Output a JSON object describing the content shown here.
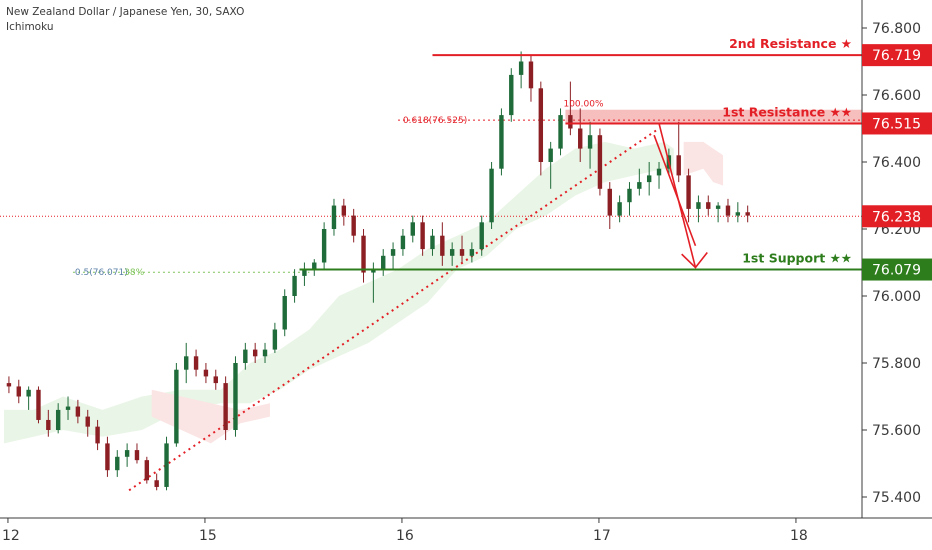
{
  "header": {
    "title": "New Zealand Dollar / Japanese Yen, 30, SAXO",
    "indicator": "Ichimoku"
  },
  "chart_data": {
    "type": "candlestick",
    "ylim": [
      75.33,
      76.86
    ],
    "y_ticks": [
      "76.800",
      "76.600",
      "76.400",
      "76.200",
      "76.000",
      "75.800",
      "75.600",
      "75.400"
    ],
    "x_ticks": [
      {
        "label": "12",
        "t": 0.4
      },
      {
        "label": "15",
        "t": 20.4
      },
      {
        "label": "16",
        "t": 40.4
      },
      {
        "label": "17",
        "t": 60.4
      },
      {
        "label": "18",
        "t": 80.4
      }
    ],
    "grid": false,
    "current_price": 76.238,
    "levels": [
      {
        "name": "2nd Resistance ★",
        "price": 76.719,
        "price_label": "76.719",
        "color": "#e31f26"
      },
      {
        "name": "1st Resistance ★★",
        "price": 76.515,
        "price_label": "76.515",
        "color": "#e31f26"
      },
      {
        "name": "1st Support ★★",
        "price": 76.079,
        "price_label": "76.079",
        "color": "#2e7d1c"
      }
    ],
    "price_tag_current": "76.238",
    "fib_labels": {
      "fib_618": "0.618(76.525)",
      "fib_100": "100.00%",
      "fib_05": "0.5(76.071)",
      "fib_05_pct": "38%"
    },
    "candles": [
      [
        75.74,
        75.76,
        75.71,
        75.73
      ],
      [
        75.73,
        75.75,
        75.68,
        75.7
      ],
      [
        75.7,
        75.73,
        75.66,
        75.72
      ],
      [
        75.72,
        75.73,
        75.62,
        75.63
      ],
      [
        75.63,
        75.66,
        75.58,
        75.6
      ],
      [
        75.6,
        75.68,
        75.59,
        75.66
      ],
      [
        75.66,
        75.7,
        75.63,
        75.67
      ],
      [
        75.67,
        75.69,
        75.62,
        75.64
      ],
      [
        75.64,
        75.66,
        75.58,
        75.61
      ],
      [
        75.61,
        75.63,
        75.54,
        75.56
      ],
      [
        75.56,
        75.58,
        75.46,
        75.48
      ],
      [
        75.48,
        75.54,
        75.46,
        75.52
      ],
      [
        75.52,
        75.56,
        75.49,
        75.54
      ],
      [
        75.54,
        75.56,
        75.5,
        75.51
      ],
      [
        75.51,
        75.52,
        75.44,
        75.45
      ],
      [
        75.45,
        75.47,
        75.42,
        75.43
      ],
      [
        75.43,
        75.58,
        75.42,
        75.56
      ],
      [
        75.56,
        75.8,
        75.55,
        75.78
      ],
      [
        75.78,
        75.86,
        75.74,
        75.82
      ],
      [
        75.82,
        75.84,
        75.76,
        75.78
      ],
      [
        75.78,
        75.8,
        75.74,
        75.76
      ],
      [
        75.76,
        75.78,
        75.72,
        75.74
      ],
      [
        75.74,
        75.76,
        75.57,
        75.6
      ],
      [
        75.6,
        75.82,
        75.58,
        75.8
      ],
      [
        75.8,
        75.86,
        75.78,
        75.84
      ],
      [
        75.84,
        75.86,
        75.8,
        75.82
      ],
      [
        75.82,
        75.86,
        75.8,
        75.84
      ],
      [
        75.84,
        75.92,
        75.83,
        75.9
      ],
      [
        75.9,
        76.02,
        75.88,
        76.0
      ],
      [
        76.0,
        76.08,
        75.98,
        76.06
      ],
      [
        76.06,
        76.1,
        76.03,
        76.08
      ],
      [
        76.08,
        76.11,
        76.06,
        76.1
      ],
      [
        76.1,
        76.22,
        76.08,
        76.2
      ],
      [
        76.2,
        76.29,
        76.18,
        76.27
      ],
      [
        76.27,
        76.29,
        76.21,
        76.24
      ],
      [
        76.24,
        76.26,
        76.16,
        76.18
      ],
      [
        76.18,
        76.2,
        76.04,
        76.07
      ],
      [
        76.07,
        76.1,
        75.98,
        76.08
      ],
      [
        76.08,
        76.14,
        76.06,
        76.12
      ],
      [
        76.12,
        76.16,
        76.08,
        76.14
      ],
      [
        76.14,
        76.2,
        76.12,
        76.18
      ],
      [
        76.18,
        76.24,
        76.16,
        76.22
      ],
      [
        76.22,
        76.24,
        76.12,
        76.14
      ],
      [
        76.14,
        76.2,
        76.12,
        76.18
      ],
      [
        76.18,
        76.22,
        76.09,
        76.12
      ],
      [
        76.12,
        76.16,
        76.09,
        76.14
      ],
      [
        76.14,
        76.18,
        76.1,
        76.12
      ],
      [
        76.12,
        76.16,
        76.1,
        76.14
      ],
      [
        76.14,
        76.24,
        76.12,
        76.22
      ],
      [
        76.22,
        76.4,
        76.2,
        76.38
      ],
      [
        76.38,
        76.56,
        76.36,
        76.54
      ],
      [
        76.54,
        76.68,
        76.52,
        76.66
      ],
      [
        76.66,
        76.73,
        76.62,
        76.7
      ],
      [
        76.7,
        76.72,
        76.58,
        76.62
      ],
      [
        76.62,
        76.64,
        76.36,
        76.4
      ],
      [
        76.4,
        76.46,
        76.32,
        76.44
      ],
      [
        76.44,
        76.56,
        76.42,
        76.54
      ],
      [
        76.54,
        76.64,
        76.48,
        76.5
      ],
      [
        76.5,
        76.56,
        76.4,
        76.44
      ],
      [
        76.44,
        76.52,
        76.38,
        76.48
      ],
      [
        76.48,
        76.5,
        76.3,
        76.32
      ],
      [
        76.32,
        76.34,
        76.2,
        76.24
      ],
      [
        76.24,
        76.3,
        76.22,
        76.28
      ],
      [
        76.28,
        76.34,
        76.24,
        76.32
      ],
      [
        76.32,
        76.38,
        76.3,
        76.34
      ],
      [
        76.34,
        76.4,
        76.3,
        76.36
      ],
      [
        76.36,
        76.4,
        76.32,
        76.38
      ],
      [
        76.38,
        76.44,
        76.36,
        76.42
      ],
      [
        76.42,
        76.52,
        76.34,
        76.36
      ],
      [
        76.36,
        76.38,
        76.22,
        76.26
      ],
      [
        76.26,
        76.3,
        76.22,
        76.28
      ],
      [
        76.28,
        76.3,
        76.24,
        76.26
      ],
      [
        76.26,
        76.28,
        76.22,
        76.27
      ],
      [
        76.27,
        76.29,
        76.22,
        76.24
      ],
      [
        76.24,
        76.28,
        76.22,
        76.25
      ],
      [
        76.25,
        76.27,
        76.22,
        76.24
      ]
    ]
  }
}
